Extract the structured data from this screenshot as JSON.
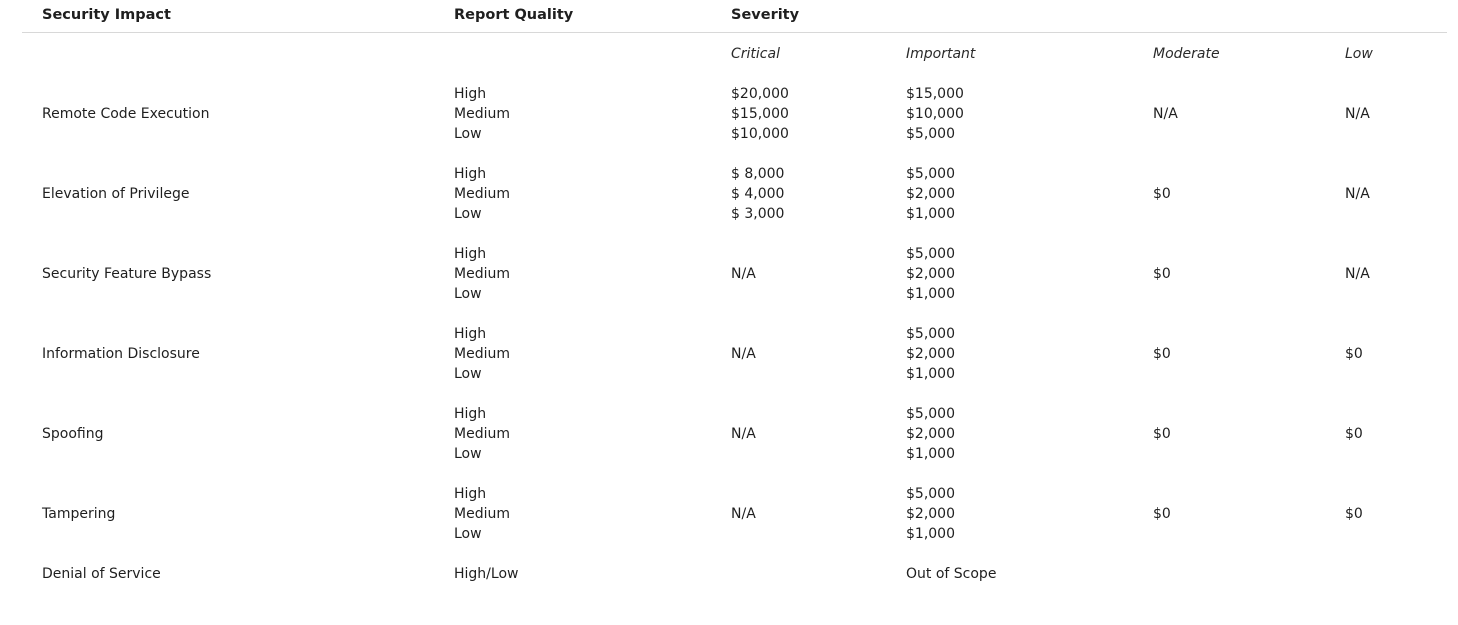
{
  "headers": {
    "security_impact": "Security Impact",
    "report_quality": "Report Quality",
    "severity": "Severity"
  },
  "severity_levels": {
    "critical": "Critical",
    "important": "Important",
    "moderate": "Moderate",
    "low": "Low"
  },
  "rows": [
    {
      "impact": "Remote Code Execution",
      "quality": [
        "High",
        "Medium",
        "Low"
      ],
      "critical": [
        "$20,000",
        "$15,000",
        "$10,000"
      ],
      "important": [
        "$15,000",
        "$10,000",
        "$5,000"
      ],
      "moderate": "N/A",
      "low": "N/A"
    },
    {
      "impact": "Elevation of Privilege",
      "quality": [
        "High",
        "Medium",
        "Low"
      ],
      "critical": [
        "$ 8,000",
        "$ 4,000",
        "$ 3,000"
      ],
      "important": [
        "$5,000",
        "$2,000",
        "$1,000"
      ],
      "moderate": "$0",
      "low": "N/A"
    },
    {
      "impact": "Security Feature Bypass",
      "quality": [
        "High",
        "Medium",
        "Low"
      ],
      "critical": "N/A",
      "important": [
        "$5,000",
        "$2,000",
        "$1,000"
      ],
      "moderate": "$0",
      "low": "N/A"
    },
    {
      "impact": "Information Disclosure",
      "quality": [
        "High",
        "Medium",
        "Low"
      ],
      "critical": "N/A",
      "important": [
        "$5,000",
        "$2,000",
        "$1,000"
      ],
      "moderate": "$0",
      "low": "$0"
    },
    {
      "impact": "Spoofing",
      "quality": [
        "High",
        "Medium",
        "Low"
      ],
      "critical": "N/A",
      "important": [
        "$5,000",
        "$2,000",
        "$1,000"
      ],
      "moderate": "$0",
      "low": "$0"
    },
    {
      "impact": "Tampering",
      "quality": [
        "High",
        "Medium",
        "Low"
      ],
      "critical": "N/A",
      "important": [
        "$5,000",
        "$2,000",
        "$1,000"
      ],
      "moderate": "$0",
      "low": "$0"
    }
  ],
  "final_row": {
    "impact": "Denial of Service",
    "quality": "High/Low",
    "important": "Out of Scope"
  }
}
